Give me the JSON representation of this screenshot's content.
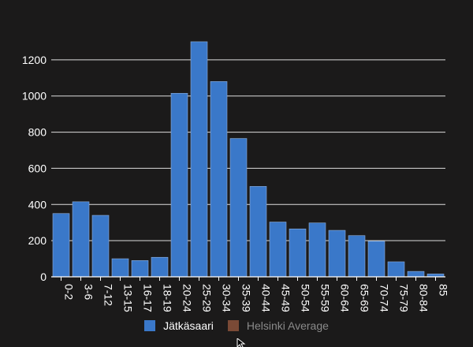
{
  "chart_data": {
    "type": "bar",
    "title": "",
    "xlabel": "",
    "ylabel": "",
    "categories": [
      "0-2",
      "3-6",
      "7-12",
      "13-15",
      "16-17",
      "18-19",
      "20-24",
      "25-29",
      "30-34",
      "35-39",
      "40-44",
      "45-49",
      "50-54",
      "55-59",
      "60-64",
      "65-69",
      "70-74",
      "75-79",
      "80-84",
      "85"
    ],
    "series": [
      {
        "name": "Jätkäsaari",
        "color": "#3a78c9",
        "values": [
          350,
          415,
          340,
          100,
          90,
          108,
          1015,
          1300,
          1080,
          765,
          500,
          303,
          265,
          298,
          257,
          228,
          197,
          83,
          30,
          16
        ]
      }
    ],
    "ylim": [
      0,
      1400
    ],
    "yticks": [
      "0",
      "200",
      "400",
      "600",
      "800",
      "1000",
      "1200"
    ],
    "grid": true,
    "legend": {
      "placement": "bottom-center",
      "items": [
        {
          "label": "Jätkäsaari",
          "color": "#3a78c9",
          "active": true
        },
        {
          "label": "Helsinki Average",
          "color": "#7a4a36",
          "active": false
        }
      ]
    }
  },
  "colors": {
    "background": "#1b1a1a",
    "grid": "#ffffff",
    "text": "#ffffff",
    "legend_inactive_text": "#8a8a8a",
    "bar_stroke": "#8fb0db"
  }
}
